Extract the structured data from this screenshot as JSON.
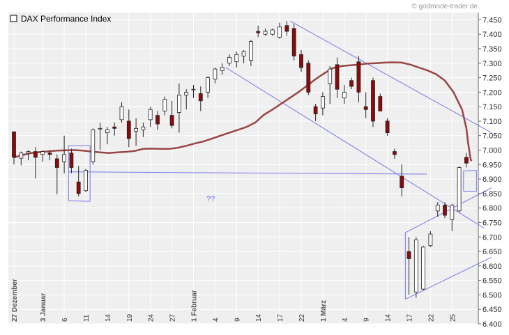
{
  "header": {
    "title": "DAX Performance Index",
    "credit": "© godmode-trader.de"
  },
  "annotation": "??",
  "colors": {
    "background": "#ffffff",
    "plot_bg": "#efefef",
    "grid": "#ffffff",
    "up_candle": "#ffffff",
    "down_candle": "#8b0a0a",
    "moving_average": "#9a4545",
    "trendlines": "#7777ee"
  },
  "chart_data": {
    "type": "candlestick",
    "title": "DAX Performance Index",
    "y_axis_position": "right",
    "ylim": [
      6400,
      7475
    ],
    "y_ticks": [
      "6.400",
      "6.450",
      "6.500",
      "6.550",
      "6.600",
      "6.650",
      "6.700",
      "6.750",
      "6.800",
      "6.850",
      "6.900",
      "6.950",
      "7.000",
      "7.050",
      "7.100",
      "7.150",
      "7.200",
      "7.250",
      "7.300",
      "7.350",
      "7.400",
      "7.450"
    ],
    "y_tick_values": [
      6400,
      6450,
      6500,
      6550,
      6600,
      6650,
      6700,
      6750,
      6800,
      6850,
      6900,
      6950,
      7000,
      7050,
      7100,
      7150,
      7200,
      7250,
      7300,
      7350,
      7400,
      7450
    ],
    "x_ticks": [
      {
        "i": 0,
        "label": "27 Dezember",
        "month": true
      },
      {
        "i": 4,
        "label": "3 Januar",
        "month": true
      },
      {
        "i": 7,
        "label": "6"
      },
      {
        "i": 10,
        "label": "11"
      },
      {
        "i": 13,
        "label": "14"
      },
      {
        "i": 16,
        "label": "19"
      },
      {
        "i": 19,
        "label": "24"
      },
      {
        "i": 22,
        "label": "27"
      },
      {
        "i": 25,
        "label": "1 Februar",
        "month": true
      },
      {
        "i": 28,
        "label": "4"
      },
      {
        "i": 31,
        "label": "9"
      },
      {
        "i": 34,
        "label": "14"
      },
      {
        "i": 37,
        "label": "17"
      },
      {
        "i": 40,
        "label": "22"
      },
      {
        "i": 43,
        "label": "1 März",
        "month": true
      },
      {
        "i": 46,
        "label": "4"
      },
      {
        "i": 49,
        "label": "9"
      },
      {
        "i": 52,
        "label": "14"
      },
      {
        "i": 55,
        "label": "17"
      },
      {
        "i": 58,
        "label": "22"
      },
      {
        "i": 61,
        "label": "25"
      }
    ],
    "candles": [
      [
        7063,
        7065,
        6950,
        6975
      ],
      [
        6972,
        6995,
        6948,
        6990
      ],
      [
        6990,
        7000,
        6965,
        6995
      ],
      [
        6995,
        7010,
        6902,
        6975
      ],
      [
        6985,
        6999,
        6960,
        6995
      ],
      [
        6990,
        7000,
        6965,
        6985
      ],
      [
        6970,
        6985,
        6848,
        6940
      ],
      [
        6960,
        7050,
        6920,
        6985
      ],
      [
        6990,
        7005,
        6920,
        6940
      ],
      [
        6890,
        6945,
        6840,
        6850
      ],
      [
        6860,
        6935,
        6855,
        6930
      ],
      [
        6960,
        7075,
        6950,
        7070
      ],
      [
        7075,
        7095,
        7000,
        7075
      ],
      [
        7060,
        7080,
        7020,
        7070
      ],
      [
        7080,
        7095,
        7050,
        7075
      ],
      [
        7105,
        7165,
        7095,
        7150
      ],
      [
        7100,
        7140,
        7010,
        7040
      ],
      [
        7065,
        7110,
        7015,
        7075
      ],
      [
        7070,
        7095,
        7045,
        7080
      ],
      [
        7105,
        7150,
        7080,
        7140
      ],
      [
        7120,
        7135,
        7070,
        7090
      ],
      [
        7135,
        7185,
        7120,
        7175
      ],
      [
        7120,
        7170,
        7075,
        7085
      ],
      [
        7130,
        7230,
        7060,
        7190
      ],
      [
        7190,
        7210,
        7140,
        7200
      ],
      [
        7210,
        7225,
        7180,
        7210
      ],
      [
        7195,
        7220,
        7135,
        7170
      ],
      [
        7200,
        7255,
        7180,
        7250
      ],
      [
        7245,
        7285,
        7230,
        7280
      ],
      [
        7275,
        7300,
        7260,
        7285
      ],
      [
        7300,
        7330,
        7290,
        7320
      ],
      [
        7305,
        7340,
        7285,
        7330
      ],
      [
        7325,
        7345,
        7300,
        7340
      ],
      [
        7310,
        7380,
        7290,
        7375
      ],
      [
        7410,
        7430,
        7390,
        7405
      ],
      [
        7400,
        7420,
        7395,
        7410
      ],
      [
        7400,
        7420,
        7395,
        7415
      ],
      [
        7390,
        7440,
        7385,
        7425
      ],
      [
        7430,
        7445,
        7395,
        7410
      ],
      [
        7420,
        7435,
        7310,
        7325
      ],
      [
        7330,
        7345,
        7270,
        7285
      ],
      [
        7300,
        7310,
        7190,
        7200
      ],
      [
        7150,
        7160,
        7100,
        7125
      ],
      [
        7145,
        7200,
        7120,
        7185
      ],
      [
        7230,
        7290,
        7160,
        7280
      ],
      [
        7295,
        7320,
        7180,
        7210
      ],
      [
        7180,
        7225,
        7160,
        7200
      ],
      [
        7240,
        7250,
        7210,
        7220
      ],
      [
        7305,
        7325,
        7165,
        7200
      ],
      [
        7150,
        7200,
        7110,
        7140
      ],
      [
        7240,
        7250,
        7080,
        7100
      ],
      [
        7185,
        7195,
        7135,
        7135
      ],
      [
        7100,
        7110,
        7050,
        7060
      ],
      [
        6995,
        7005,
        6970,
        6985
      ],
      [
        6910,
        6950,
        6840,
        6870
      ],
      [
        6650,
        6700,
        6500,
        6625
      ],
      [
        6510,
        6700,
        6490,
        6690
      ],
      [
        6520,
        6670,
        6515,
        6665
      ],
      [
        6670,
        6720,
        6665,
        6710
      ],
      [
        6790,
        6820,
        6770,
        6810
      ],
      [
        6810,
        6820,
        6765,
        6775
      ],
      [
        6760,
        6815,
        6720,
        6810
      ],
      [
        6790,
        6945,
        6785,
        6940
      ],
      [
        6975,
        6990,
        6940,
        6955
      ]
    ],
    "moving_average": [
      6975,
      6983,
      6990,
      6993,
      6996,
      6998,
      6999,
      7000,
      6998,
      6995,
      6992,
      6990,
      6992,
      6994,
      6997,
      7004,
      7005,
      7004,
      7004,
      7008,
      7015,
      7023,
      7030,
      7040,
      7050,
      7060,
      7070,
      7080,
      7095,
      7122,
      7140,
      7160,
      7180,
      7200,
      7222,
      7245,
      7265,
      7283,
      7290,
      7293,
      7295,
      7299,
      7300,
      7302,
      7303,
      7302,
      7295,
      7285,
      7275,
      7262,
      7240,
      7200,
      7140,
      7075,
      7030,
      7000,
      6980,
      6968,
      6962
    ],
    "ma_start_index": 0,
    "ma_x_points": [
      0,
      1.2,
      2.4,
      3.6,
      4.8,
      6,
      7.2,
      8.4,
      9.6,
      10.8,
      12,
      13.2,
      14.4,
      15.6,
      16.8,
      18,
      19.2,
      20.4,
      21.6,
      22.8,
      24,
      25.2,
      26.4,
      27.6,
      28.8,
      30,
      31.2,
      32.4,
      33.6,
      34.8,
      36,
      37.2,
      38.4,
      39.6,
      40.8,
      42,
      43.2,
      44.4,
      45.6,
      46.8,
      48,
      49.2,
      50.4,
      51.6,
      52.8,
      54,
      55.2,
      56.4,
      57.6,
      58.8,
      60,
      61.2,
      62.4,
      63,
      63.2,
      63.4,
      63.5,
      63.6,
      63.7
    ],
    "trendlines": [
      {
        "from": [
          7.6,
          6925
        ],
        "to": [
          57.5,
          6917
        ]
      },
      {
        "from": [
          7.6,
          6825
        ],
        "to": [
          10.6,
          6823
        ]
      },
      {
        "from": [
          7.6,
          6825
        ],
        "to": [
          7.6,
          7015
        ]
      },
      {
        "from": [
          7.6,
          7015
        ],
        "to": [
          10.6,
          7015
        ]
      },
      {
        "from": [
          10.6,
          7015
        ],
        "to": [
          10.6,
          6823
        ]
      },
      {
        "from": [
          29.5,
          7285
        ],
        "to": [
          65.5,
          6730
        ]
      },
      {
        "from": [
          38.5,
          7445
        ],
        "to": [
          66.5,
          7060
        ]
      },
      {
        "from": [
          54.5,
          6485
        ],
        "to": [
          66.5,
          6630
        ]
      },
      {
        "from": [
          54.5,
          6485
        ],
        "to": [
          54.5,
          6715
        ]
      },
      {
        "from": [
          54.5,
          6715
        ],
        "to": [
          66.5,
          6870
        ]
      },
      {
        "from": [
          62.6,
          6928
        ],
        "to": [
          64.4,
          6930
        ]
      },
      {
        "from": [
          64.4,
          6930
        ],
        "to": [
          64.4,
          6858
        ]
      },
      {
        "from": [
          62.6,
          6858
        ],
        "to": [
          64.4,
          6858
        ]
      },
      {
        "from": [
          62.6,
          6858
        ],
        "to": [
          62.6,
          6928
        ]
      }
    ],
    "grid": true
  }
}
